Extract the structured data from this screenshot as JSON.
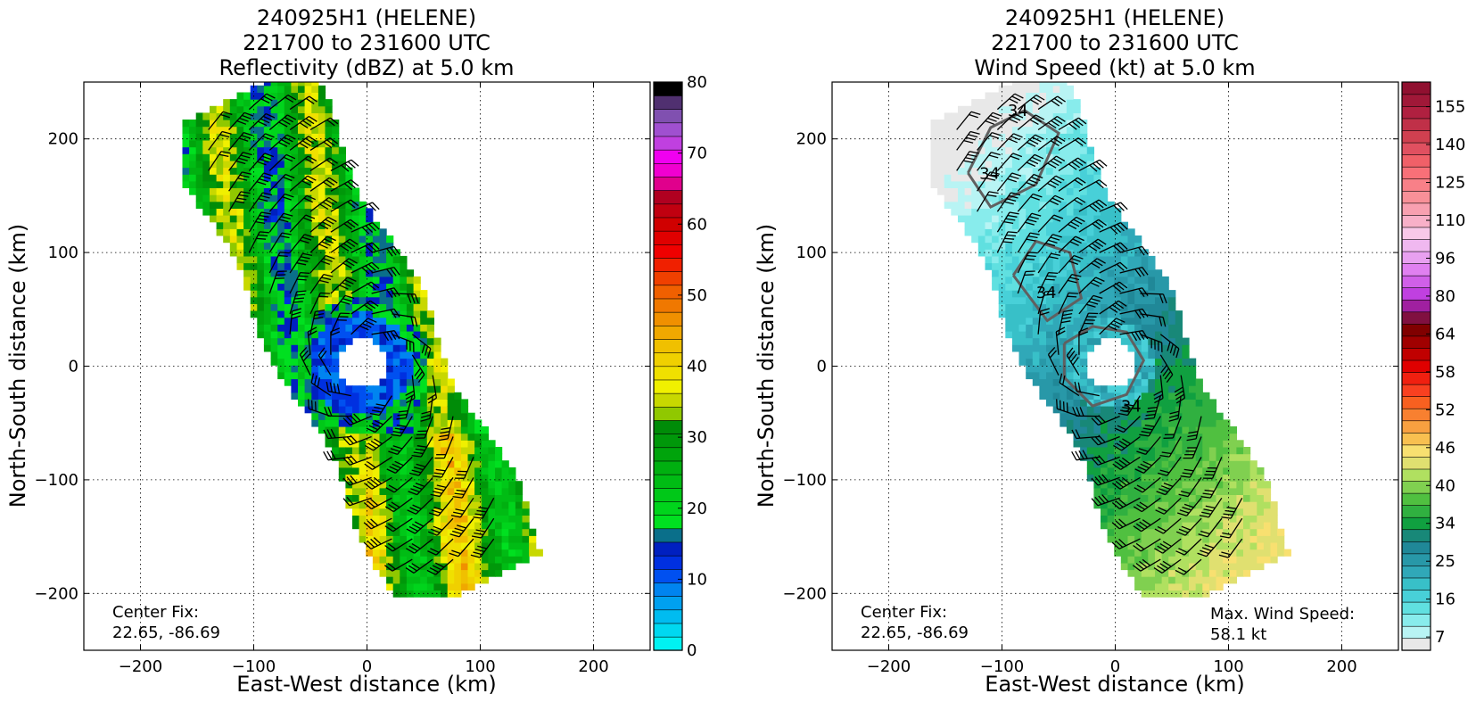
{
  "colors": {
    "grid": "#000000",
    "contour": "#606060",
    "barb": "#000000"
  },
  "chart_data": [
    {
      "type": "heatmap",
      "title_lines": [
        "240925H1 (HELENE)",
        "221700 to 231600 UTC",
        "Reflectivity (dBZ) at 5.0 km"
      ],
      "xlabel": "East-West distance (km)",
      "ylabel": "North-South distance (km)",
      "xlim": [
        -250,
        250
      ],
      "ylim": [
        -250,
        250
      ],
      "xticks": [
        -200,
        -100,
        0,
        100,
        200
      ],
      "yticks": [
        -200,
        -100,
        0,
        100,
        200
      ],
      "xtick_labels": [
        "−200",
        "−100",
        "0",
        "100",
        "200"
      ],
      "ytick_labels": [
        "−200",
        "−100",
        "0",
        "100",
        "200"
      ],
      "grid": true,
      "annotations": {
        "center_fix_label": "Center Fix:",
        "center_fix_value": "22.65, -86.69"
      },
      "colorbar": {
        "min": 0,
        "max": 80,
        "tick_values": [
          0,
          10,
          20,
          30,
          40,
          50,
          60,
          70,
          80
        ],
        "tick_labels": [
          "0",
          "10",
          "20",
          "30",
          "40",
          "50",
          "60",
          "70",
          "80"
        ],
        "colors": [
          "#00f2f2",
          "#00d8f0",
          "#00bcf0",
          "#00a0f0",
          "#0084f0",
          "#0050f0",
          "#0030e0",
          "#0020c0",
          "#0a6f8a",
          "#00e020",
          "#00d41c",
          "#00c818",
          "#00bc14",
          "#00b010",
          "#00a40c",
          "#00980a",
          "#008c08",
          "#90c800",
          "#c8d800",
          "#f0f000",
          "#f0e000",
          "#f0d000",
          "#f0c000",
          "#f0a800",
          "#f09000",
          "#f07800",
          "#f06000",
          "#f04000",
          "#f02000",
          "#f00000",
          "#e00000",
          "#d00000",
          "#c00010",
          "#b00020",
          "#e0008c",
          "#f000d0",
          "#f000f0",
          "#c040e0",
          "#a050d0",
          "#8050b0",
          "#503070",
          "#000000"
        ]
      },
      "wind_barbs_approx": "~120 barbs, 25-60 kt"
    },
    {
      "type": "heatmap",
      "title_lines": [
        "240925H1 (HELENE)",
        "221700 to 231600 UTC",
        "Wind Speed (kt) at 5.0 km"
      ],
      "xlabel": "East-West distance (km)",
      "ylabel": "North-South distance (km)",
      "xlim": [
        -250,
        250
      ],
      "ylim": [
        -250,
        250
      ],
      "xticks": [
        -200,
        -100,
        0,
        100,
        200
      ],
      "yticks": [
        -200,
        -100,
        0,
        100,
        200
      ],
      "xtick_labels": [
        "−200",
        "−100",
        "0",
        "100",
        "200"
      ],
      "ytick_labels": [
        "−200",
        "−100",
        "0",
        "100",
        "200"
      ],
      "grid": true,
      "contour_labels": [
        "34",
        "34",
        "34",
        "34"
      ],
      "annotations": {
        "center_fix_label": "Center Fix:",
        "center_fix_value": "22.65, -86.69",
        "max_wind_label": "Max. Wind Speed:",
        "max_wind_value": "58.1 kt"
      },
      "colorbar": {
        "min": 4,
        "max": 160,
        "tick_labels": [
          "7",
          "16",
          "25",
          "34",
          "40",
          "46",
          "52",
          "58",
          "64",
          "80",
          "96",
          "110",
          "125",
          "140",
          "155"
        ],
        "colors": [
          "#e8e8e8",
          "#b8f4f4",
          "#88ecec",
          "#60e0e0",
          "#48d0d8",
          "#38c0c8",
          "#30a8b8",
          "#2898a8",
          "#208898",
          "#188878",
          "#10a040",
          "#30b040",
          "#50c040",
          "#80d050",
          "#b0e060",
          "#e0e070",
          "#f8e070",
          "#f8c050",
          "#f8a040",
          "#f88030",
          "#f86020",
          "#f84020",
          "#f02010",
          "#e00000",
          "#c00000",
          "#a00000",
          "#800000",
          "#801040",
          "#a020a0",
          "#c040e0",
          "#d060e8",
          "#e080f0",
          "#e8a0f0",
          "#f0b8f0",
          "#f8c8e8",
          "#f8b0c8",
          "#f8a0b0",
          "#f89098",
          "#f88088",
          "#f87078",
          "#f06068",
          "#e05060",
          "#d04050",
          "#c03048",
          "#b02040",
          "#a01838",
          "#901030"
        ]
      },
      "wind_barbs_approx": "~120 barbs, 25-60 kt"
    }
  ]
}
